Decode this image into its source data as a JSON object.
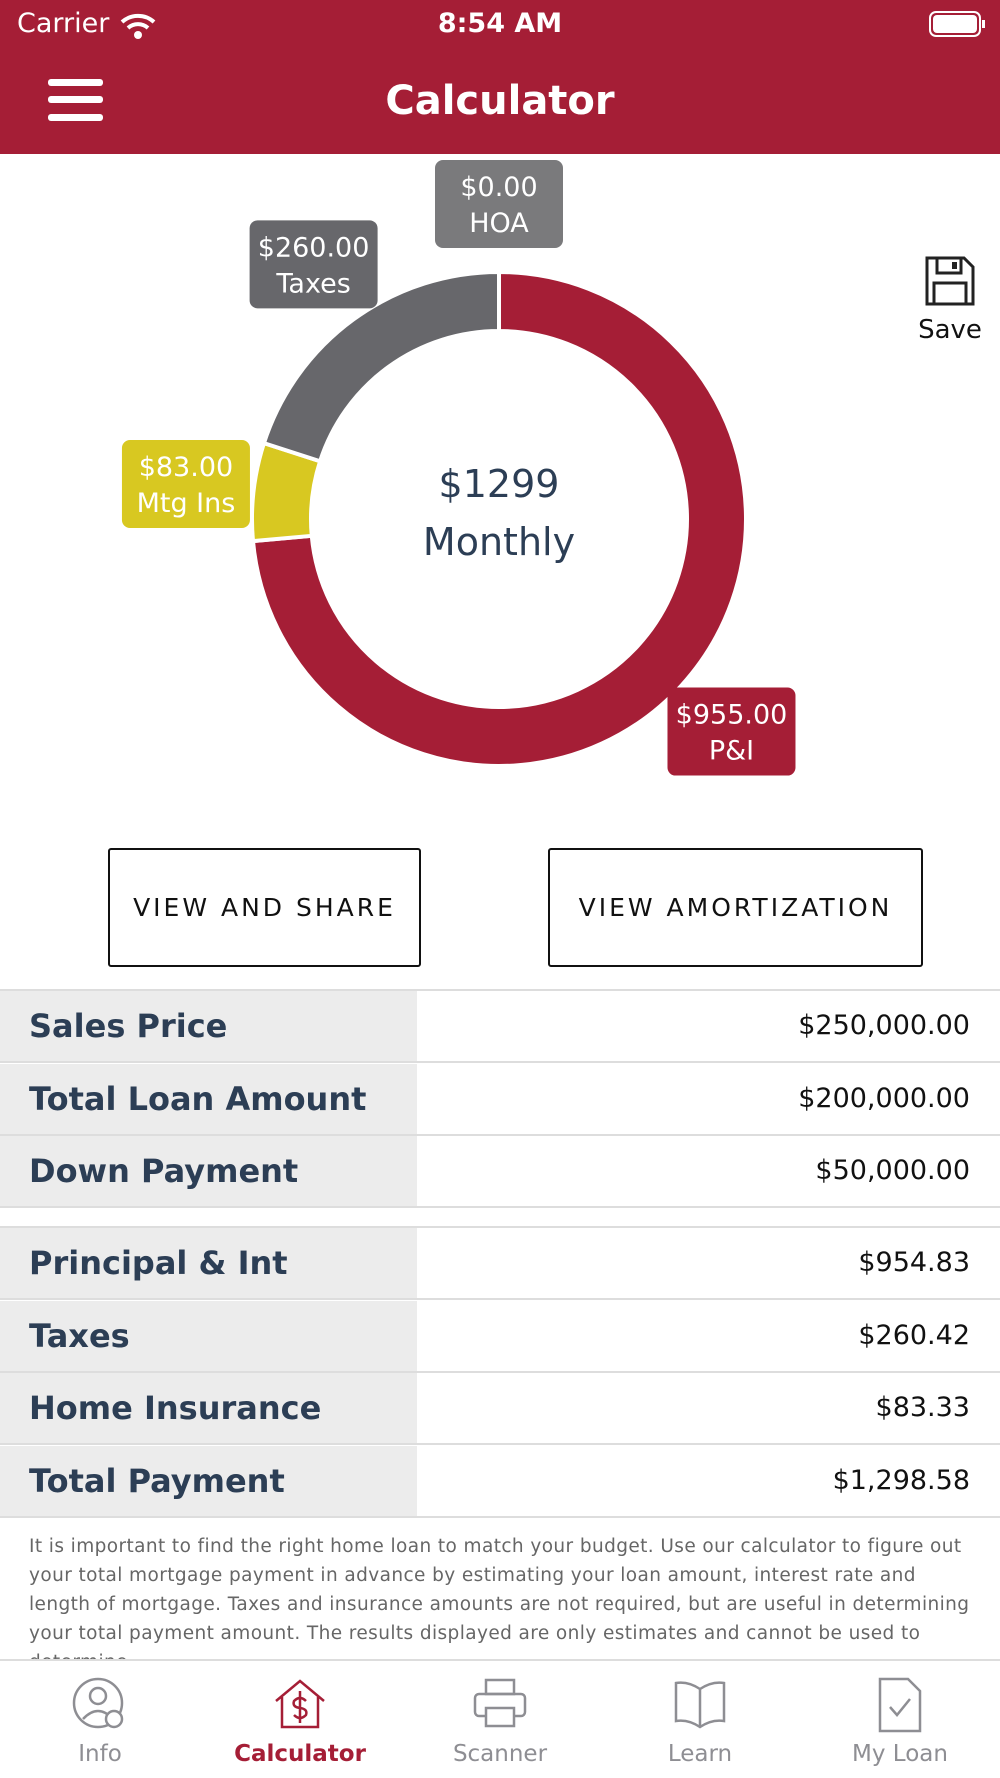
{
  "status_bar": {
    "carrier": "Carrier",
    "time": "8:54 AM"
  },
  "header": {
    "title": "Calculator"
  },
  "save": {
    "label": "Save"
  },
  "chart_data": {
    "type": "pie",
    "donut": true,
    "categories": [
      "P&I",
      "Mtg Ins",
      "Taxes",
      "HOA"
    ],
    "values": [
      955,
      83,
      260,
      0
    ],
    "value_labels": [
      "$955.00",
      "$83.00",
      "$260.00",
      "$0.00"
    ],
    "colors": [
      "#a51e36",
      "#d8c821",
      "#67676b",
      "#7a7a7c"
    ],
    "center_label": "$1299",
    "center_sublabel": "Monthly"
  },
  "buttons": [
    "VIEW AND SHARE",
    "VIEW AMORTIZATION"
  ],
  "table": {
    "groups": [
      [
        [
          "Sales Price",
          "$250,000.00"
        ],
        [
          "Total Loan Amount",
          "$200,000.00"
        ],
        [
          "Down Payment",
          "$50,000.00"
        ]
      ],
      [
        [
          "Principal & Int",
          "$954.83"
        ],
        [
          "Taxes",
          "$260.42"
        ],
        [
          "Home Insurance",
          "$83.33"
        ],
        [
          "Total Payment",
          "$1,298.58"
        ]
      ]
    ]
  },
  "disclaimer": "It is important to find the right home loan to match your budget. Use our calculator to figure out your total mortgage payment in advance by estimating your loan amount, interest rate and length of mortgage. Taxes and insurance amounts are not required, but are useful in determining your total payment amount. The results displayed are only estimates and cannot be used to determine",
  "tabs": [
    {
      "label": "Info",
      "active": false
    },
    {
      "label": "Calculator",
      "active": true
    },
    {
      "label": "Scanner",
      "active": false
    },
    {
      "label": "Learn",
      "active": false
    },
    {
      "label": "My Loan",
      "active": false
    }
  ]
}
